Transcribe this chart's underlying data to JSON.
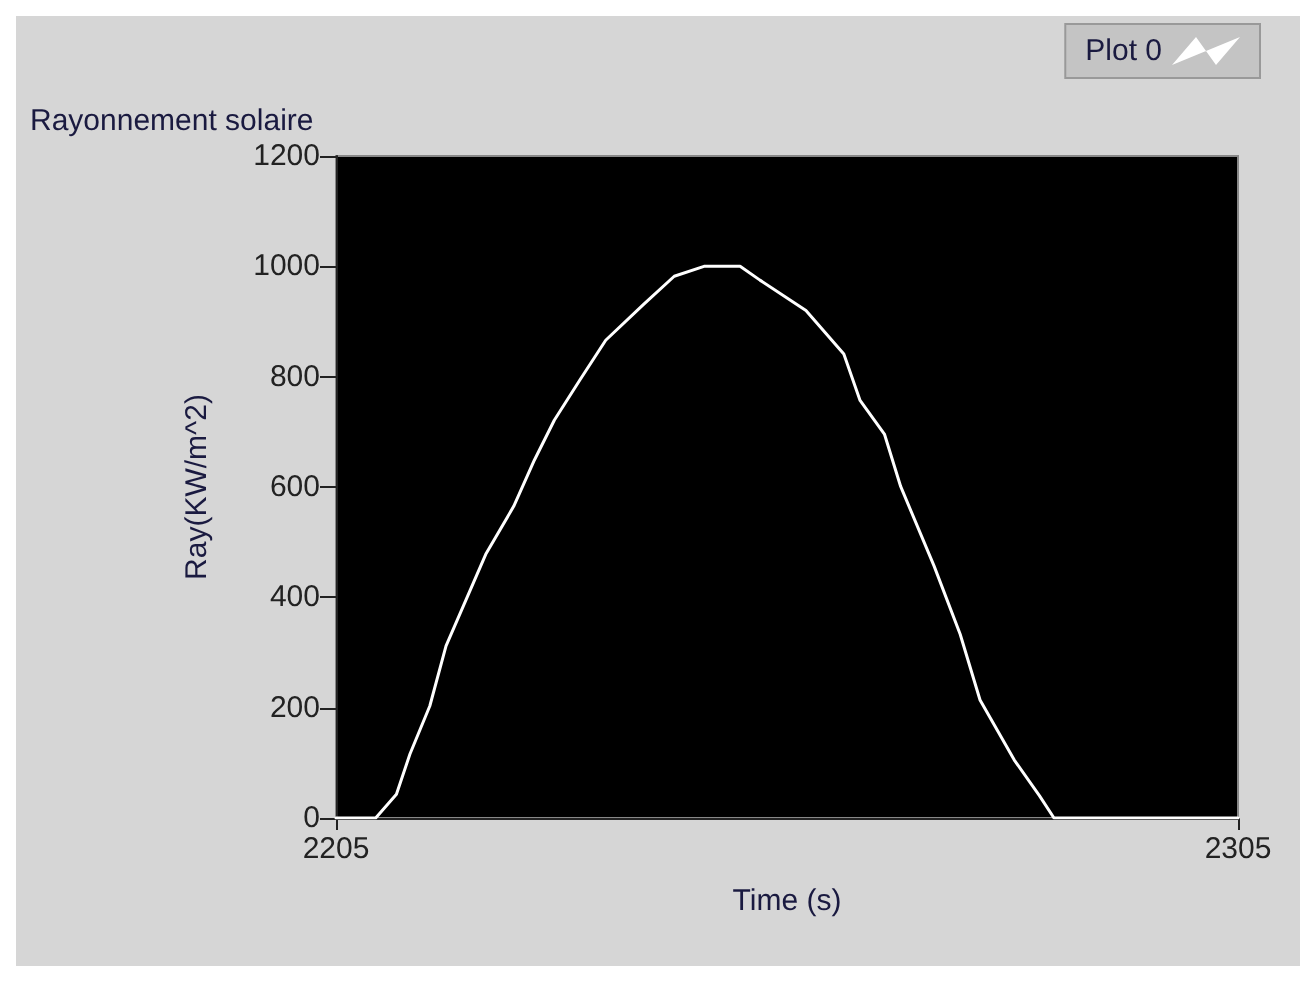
{
  "chart_data": {
    "type": "line",
    "title": "Rayonnement solaire",
    "xlabel": "Time (s)",
    "ylabel": "Ray(KW/m^2)",
    "x": [
      2205,
      2209.4,
      2211.7,
      2213.2,
      2215.4,
      2217.2,
      2219.4,
      2221.6,
      2224.7,
      2227,
      2229.2,
      2232,
      2234.9,
      2239.1,
      2242.5,
      2245.8,
      2249.8,
      2252,
      2257.1,
      2261.3,
      2263.1,
      2265.8,
      2267.6,
      2271.3,
      2274.2,
      2276.4,
      2280.2,
      2283,
      2284.6,
      2305
    ],
    "series": [
      {
        "name": "Plot 0",
        "color": "#ffffff",
        "values": [
          0,
          0,
          43,
          116,
          203,
          312,
          395,
          478,
          565,
          649,
          721,
          793,
          866,
          931,
          982,
          1000,
          1000,
          975,
          920,
          841,
          757,
          696,
          601,
          457,
          333,
          214,
          105,
          40,
          0,
          0
        ]
      }
    ],
    "xlim": [
      2205,
      2305
    ],
    "xticks": [
      2205,
      2305
    ],
    "ylim": [
      0,
      1200
    ],
    "yticks": [
      0,
      200,
      400,
      600,
      800,
      1000,
      1200
    ],
    "legend": "top right",
    "grid": false,
    "marker": "none"
  }
}
